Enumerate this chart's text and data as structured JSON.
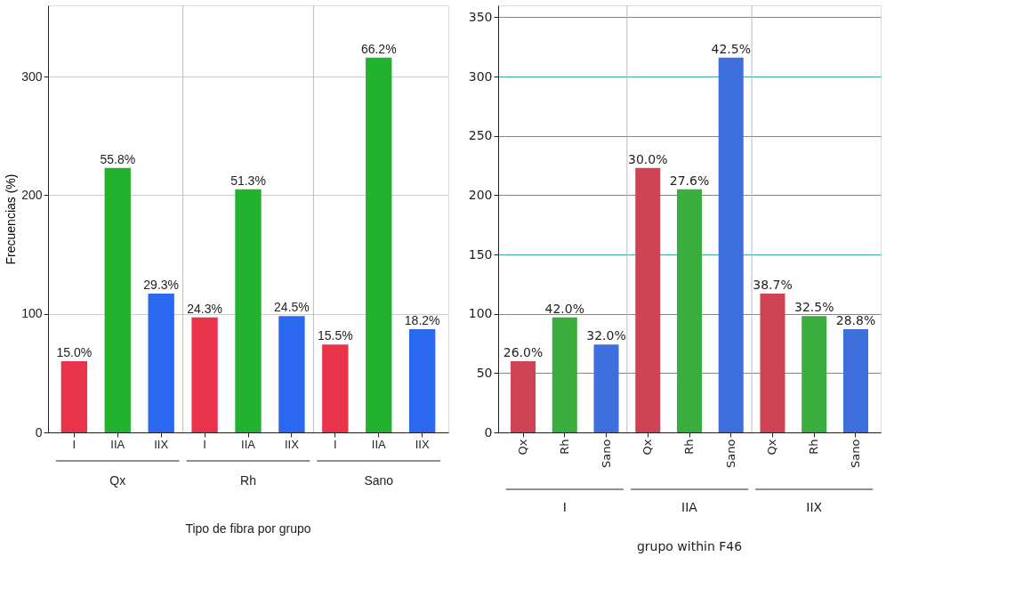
{
  "chart_data": [
    {
      "type": "bar",
      "xlabel": "Tipo de fibra por grupo",
      "ylabel": "Frecuencias (%)",
      "categories": [
        "Qx",
        "Rh",
        "Sano"
      ],
      "series": [
        {
          "name": "I",
          "color": "#e8334a",
          "values": [
            60,
            97,
            74
          ]
        },
        {
          "name": "IIA",
          "color": "#22b22e",
          "values": [
            223,
            205,
            316
          ]
        },
        {
          "name": "IIX",
          "color": "#2a68f0",
          "values": [
            117,
            98,
            87
          ]
        }
      ],
      "annotations": [
        "15.0%",
        "55.8%",
        "29.3%",
        "24.3%",
        "51.3%",
        "24.5%",
        "15.5%",
        "66.2%",
        "18.2%"
      ],
      "ylim": [
        0,
        360
      ],
      "yticks": [
        0,
        100,
        200,
        300
      ],
      "grid": true
    },
    {
      "type": "bar",
      "xlabel": "grupo within F46",
      "categories": [
        "I",
        "IIA",
        "IIX"
      ],
      "series": [
        {
          "name": "Qx",
          "color": "#cf4455",
          "values": [
            60,
            223,
            117
          ]
        },
        {
          "name": "Rh",
          "color": "#3aad3e",
          "values": [
            97,
            205,
            98
          ]
        },
        {
          "name": "Sano",
          "color": "#3f6fdc",
          "values": [
            74,
            316,
            87
          ]
        }
      ],
      "annotations": [
        "26.0%",
        "42.0%",
        "32.0%",
        "30.0%",
        "27.6%",
        "42.5%",
        "38.7%",
        "32.5%",
        "28.8%"
      ],
      "ylim": [
        0,
        360
      ],
      "yticks": [
        0,
        50,
        100,
        150,
        200,
        250,
        300,
        350
      ],
      "grid": true
    }
  ]
}
